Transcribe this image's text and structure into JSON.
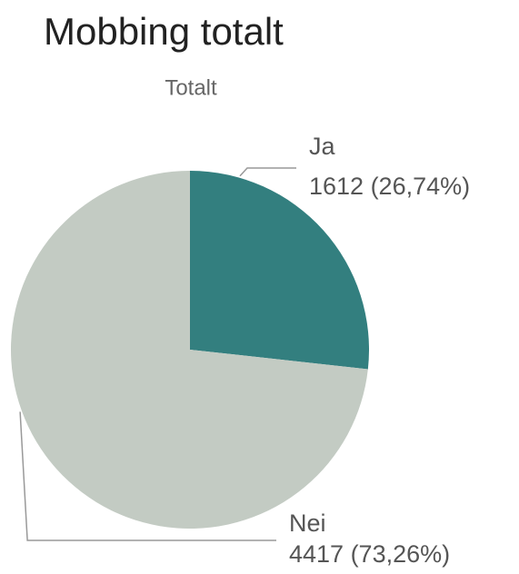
{
  "chart_data": {
    "type": "pie",
    "title": "Mobbing totalt",
    "subtitle": "Totalt",
    "categories": [
      "Ja",
      "Nei"
    ],
    "values": [
      1612,
      4417
    ],
    "value_labels": [
      "1612 (26,74%)",
      "4417 (73,26%)"
    ],
    "colors": [
      "#337f7f",
      "#c3cbc3"
    ]
  }
}
